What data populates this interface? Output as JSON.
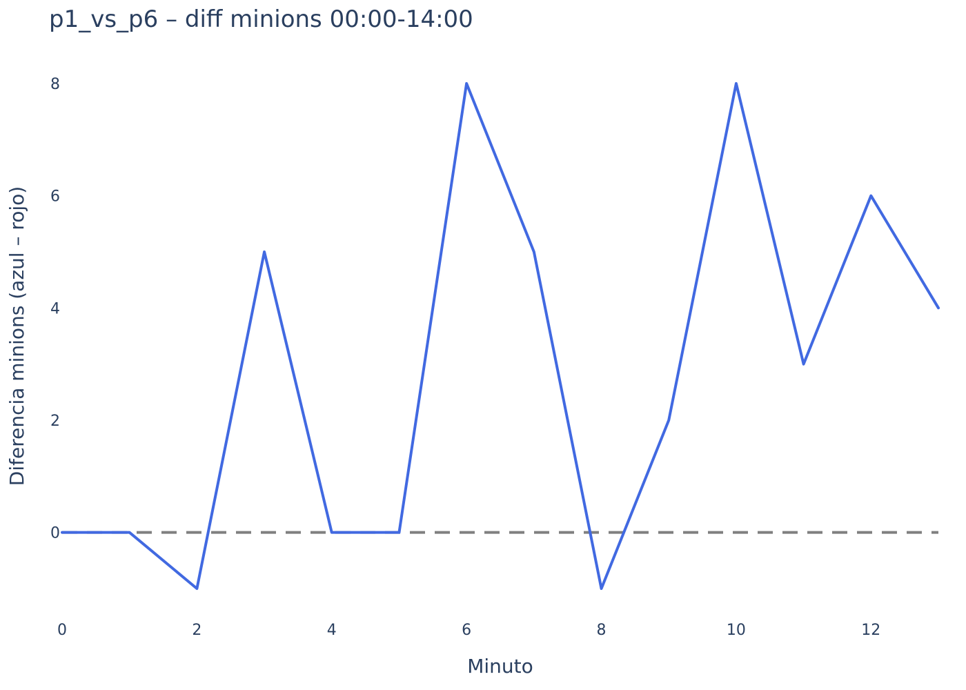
{
  "chart_data": {
    "type": "line",
    "title": "p1_vs_p6 – diff minions 00:00-14:00",
    "xlabel": "Minuto",
    "ylabel": "Diferencia minions (azul – rojo)",
    "x": [
      0,
      1,
      2,
      3,
      4,
      5,
      6,
      7,
      8,
      9,
      10,
      11,
      12,
      13
    ],
    "series": [
      {
        "values": [
          0,
          0,
          -1,
          5,
          0,
          0,
          8,
          5,
          -1,
          2,
          8,
          3,
          6,
          4
        ],
        "color": "#4169e1"
      }
    ],
    "reference_line": {
      "y": 0,
      "style": "dashed",
      "color": "#808080"
    },
    "xlim": [
      0,
      13
    ],
    "ylim": [
      -1,
      8
    ],
    "xticks": [
      "0",
      "2",
      "4",
      "6",
      "8",
      "10",
      "12"
    ],
    "yticks": [
      "0",
      "2",
      "4",
      "6",
      "8"
    ],
    "xtick_values": [
      0,
      2,
      4,
      6,
      8,
      10,
      12
    ],
    "ytick_values": [
      0,
      2,
      4,
      6,
      8
    ],
    "grid": false,
    "legend": "none"
  }
}
